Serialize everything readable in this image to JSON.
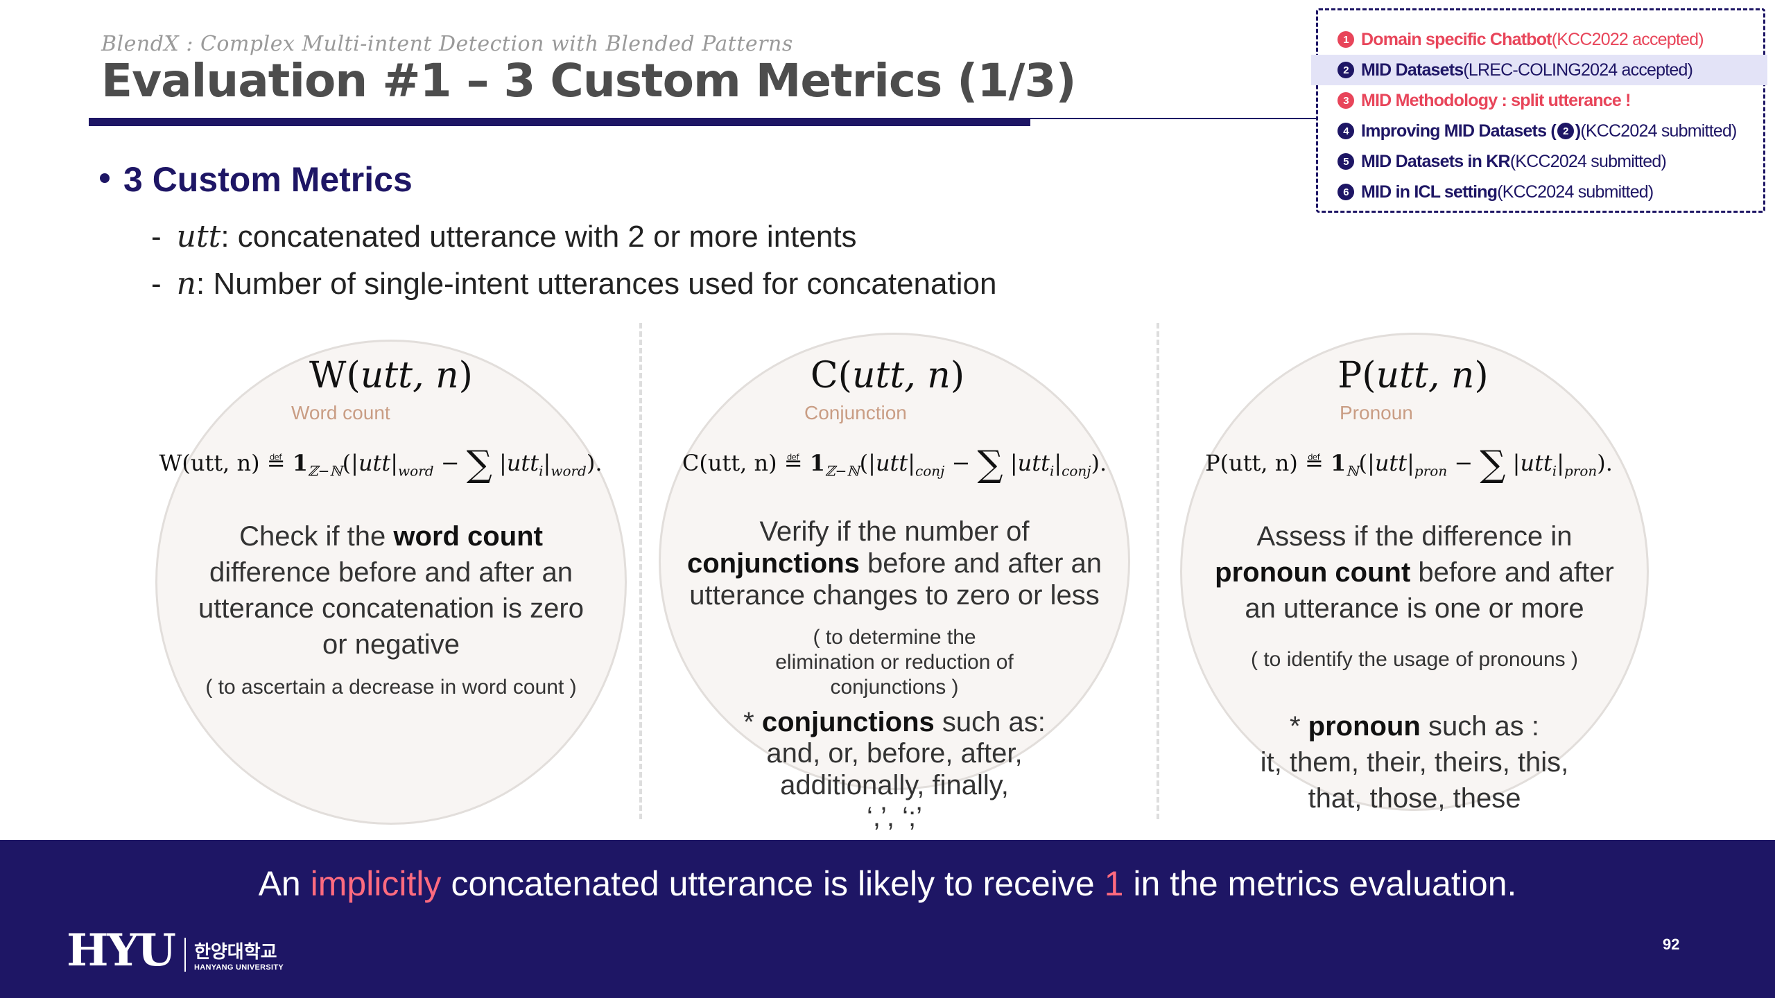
{
  "header": {
    "subtitle": "BlendX : Complex Multi-intent Detection with Blended Patterns",
    "title": "Evaluation #1 – 3 Custom Metrics (1/3)"
  },
  "toc": {
    "items": [
      {
        "num": "1",
        "main": "Domain specific Chatbot",
        "rest": " (KCC2022 accepted)",
        "color": "#e8455a"
      },
      {
        "num": "2",
        "main": "MID Datasets",
        "rest": " (LREC-COLING2024 accepted)",
        "color": "#1e1665",
        "current": true
      },
      {
        "num": "3",
        "main": "MID Methodology : split utterance !",
        "rest": "",
        "color": "#e8455a"
      },
      {
        "num": "4",
        "main": "Improving MID Datasets (",
        "inline_num": "2",
        "rest_bold": ")",
        "rest": " (KCC2024 submitted)",
        "color": "#1e1665"
      },
      {
        "num": "5",
        "main": "MID Datasets in KR",
        "rest": " (KCC2024 submitted)",
        "color": "#1e1665"
      },
      {
        "num": "6",
        "main": "MID in ICL setting",
        "rest": " (KCC2024 submitted)",
        "color": "#1e1665"
      }
    ]
  },
  "bullet": {
    "heading": "3 Custom Metrics",
    "lines": [
      {
        "dash": "-",
        "var": "utt",
        "text": ": concatenated utterance with 2 or more intents"
      },
      {
        "dash": "-",
        "var": "n",
        "text": ": Number of single-intent utterances used for concatenation"
      }
    ]
  },
  "metrics": [
    {
      "head_fn": "W",
      "head_args": "utt, n",
      "tag": "Word count",
      "formula": {
        "lhs": "W(utt, n)",
        "indicator": "ℤ−ℕ",
        "term1_sub": "word",
        "term2_sub": "word"
      },
      "desc_pre": "Check if the ",
      "desc_bold": "word count",
      "desc_post": " difference before and after an utterance concatenation is zero or negative",
      "note": "( to ascertain a decrease in word count )"
    },
    {
      "head_fn": "C",
      "head_args": "utt, n",
      "tag": "Conjunction",
      "formula": {
        "lhs": "C(utt, n)",
        "indicator": "ℤ−ℕ",
        "term1_sub": "conj",
        "term2_sub": "conj"
      },
      "desc_pre": "Verify if the number of ",
      "desc_bold": "conjunctions",
      "desc_post": " before and after an utterance changes to zero or less",
      "note": "( to determine the elimination or reduction of conjunctions )",
      "extra_pre": "* ",
      "extra_bold": "conjunctions",
      "extra_post": " such as:",
      "extra_list": "and, or, before, after, additionally, finally, ‘,’, ‘;’"
    },
    {
      "head_fn": "P",
      "head_args": "utt, n",
      "tag": "Pronoun",
      "formula": {
        "lhs": "P(utt, n)",
        "indicator": "ℕ",
        "term1_sub": "pron",
        "term2_sub": "pron"
      },
      "desc_pre": "Assess if the difference in ",
      "desc_bold": "pronoun count",
      "desc_post": " before and after an utterance is one or more",
      "note": "( to identify the usage of pronouns )",
      "extra_pre": "* ",
      "extra_bold": "pronoun",
      "extra_post": " such as :",
      "extra_list": "it, them, their, theirs, this, that, those, these"
    }
  ],
  "footer": {
    "msg_pre": "An ",
    "msg_hl1": "implicitly",
    "msg_mid": " concatenated utterance is likely to receive ",
    "msg_hl2": "1",
    "msg_post": " in the metrics evaluation.",
    "logo_main": "HYU",
    "logo_ko": "한양대학교",
    "logo_en": "HANYANG UNIVERSITY",
    "page_number": "92"
  },
  "colors": {
    "navy": "#1e1665",
    "accent_red": "#e8455a",
    "tag_brown": "#c99d84"
  }
}
